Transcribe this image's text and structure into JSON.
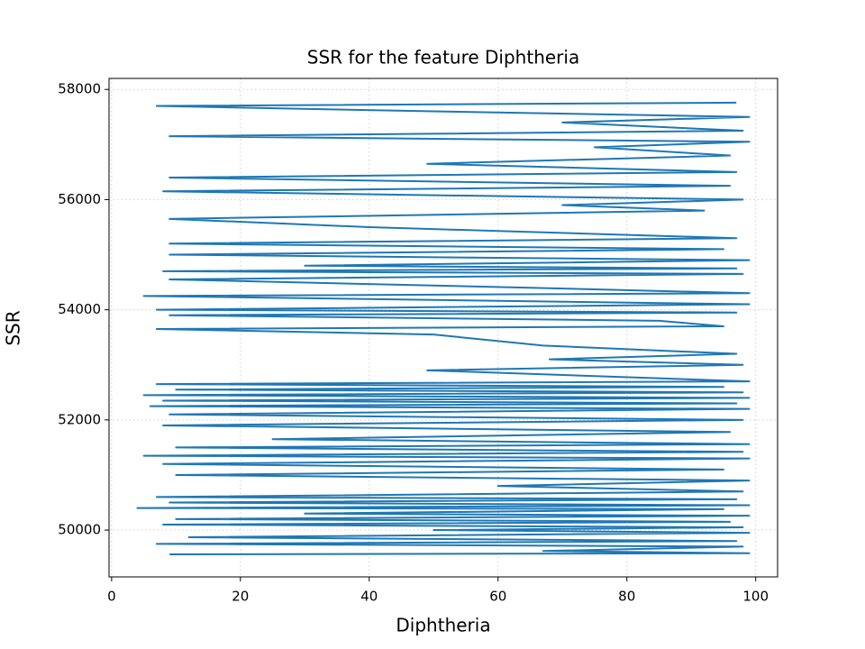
{
  "chart_data": {
    "type": "line",
    "title": "SSR for the feature Diphtheria",
    "xlabel": "Diphtheria",
    "ylabel": "SSR",
    "grid": true,
    "xlim": [
      -0.4,
      103.4
    ],
    "xticks": [
      0,
      20,
      40,
      60,
      80,
      100
    ],
    "ylim": [
      49150,
      58200
    ],
    "yticks": [
      50000,
      52000,
      54000,
      56000,
      58000
    ],
    "series": [
      {
        "color": "#1f77b4",
        "x": [
          9,
          99,
          67,
          98,
          7,
          97,
          12,
          99,
          50,
          98,
          8,
          96,
          10,
          99,
          30,
          95,
          4,
          99,
          9,
          97,
          7,
          98,
          60,
          99,
          10,
          95,
          8,
          99,
          5,
          98,
          10,
          99,
          25,
          96,
          8,
          98,
          9,
          99,
          6,
          97,
          8,
          99,
          5,
          98,
          10,
          95,
          7,
          99,
          49,
          98,
          68,
          97,
          67,
          50,
          7,
          95,
          85,
          9,
          97,
          7,
          99,
          5,
          99,
          65,
          9,
          98,
          8,
          97,
          30,
          99,
          9,
          95,
          9,
          97,
          40,
          9,
          92,
          70,
          98,
          8,
          96,
          9,
          97,
          49,
          96,
          75,
          99,
          9,
          98,
          70,
          99,
          51,
          7,
          97
        ],
        "values": [
          49560,
          49580,
          49620,
          49700,
          49750,
          49800,
          49870,
          49950,
          50000,
          50050,
          50100,
          50150,
          50200,
          50260,
          50300,
          50380,
          50400,
          50450,
          50500,
          50560,
          50600,
          50700,
          50800,
          50900,
          51000,
          51100,
          51200,
          51300,
          51350,
          51420,
          51500,
          51560,
          51650,
          51780,
          51900,
          52000,
          52100,
          52200,
          52250,
          52300,
          52350,
          52400,
          52450,
          52500,
          52550,
          52600,
          52650,
          52700,
          52900,
          53000,
          53100,
          53200,
          53350,
          53550,
          53650,
          53700,
          53800,
          53900,
          53950,
          54000,
          54100,
          54250,
          54300,
          54400,
          54550,
          54650,
          54700,
          54750,
          54800,
          54900,
          55000,
          55100,
          55200,
          55300,
          55500,
          55650,
          55800,
          55900,
          56000,
          56150,
          56250,
          56400,
          56500,
          56650,
          56800,
          56950,
          57050,
          57150,
          57250,
          57400,
          57500,
          57600,
          57700,
          57760
        ]
      }
    ]
  }
}
